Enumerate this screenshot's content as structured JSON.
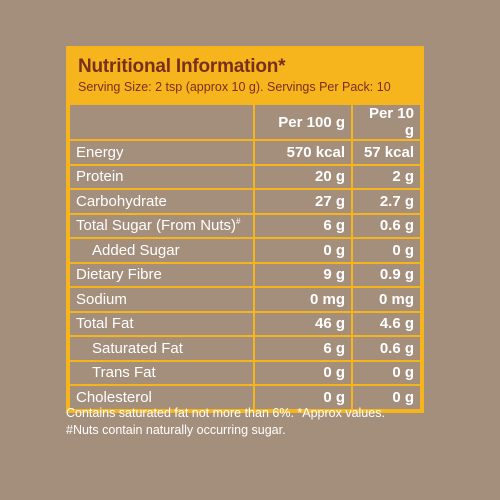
{
  "panel": {
    "title": "Nutritional Information*",
    "serving": "Serving Size: 2 tsp (approx 10 g). Servings Per Pack: 10"
  },
  "table": {
    "columns": [
      "Per 100 g",
      "Per 10 g"
    ],
    "rows": [
      {
        "name": "Energy",
        "per100": "570 kcal",
        "per10": "57 kcal"
      },
      {
        "name": "Protein",
        "per100": "20 g",
        "per10": "2 g"
      },
      {
        "name": "Carbohydrate",
        "per100": "27 g",
        "per10": "2.7 g"
      },
      {
        "name": "Total Sugar (From Nuts)",
        "mark": "#",
        "per100": "6 g",
        "per10": "0.6 g"
      },
      {
        "name": "Added Sugar",
        "per100": "0 g",
        "per10": "0 g"
      },
      {
        "name": "Dietary Fibre",
        "per100": "9 g",
        "per10": "0.9 g"
      },
      {
        "name": "Sodium",
        "per100": "0 mg",
        "per10": "0 mg"
      },
      {
        "name": "Total Fat",
        "per100": "46 g",
        "per10": "4.6 g"
      },
      {
        "name": "Saturated Fat",
        "per100": "6 g",
        "per10": "0.6 g"
      },
      {
        "name": "Trans Fat",
        "per100": "0 g",
        "per10": "0 g"
      },
      {
        "name": "Cholesterol",
        "per100": "0 g",
        "per10": "0 g"
      }
    ]
  },
  "footnote": {
    "line1": "Contains saturated fat not more than 6%. *Approx values.",
    "line2": "#Nuts contain naturally occurring sugar."
  },
  "colors": {
    "background": "#a48f7d",
    "accent": "#f6b51c",
    "title_text": "#7a2e1c"
  }
}
